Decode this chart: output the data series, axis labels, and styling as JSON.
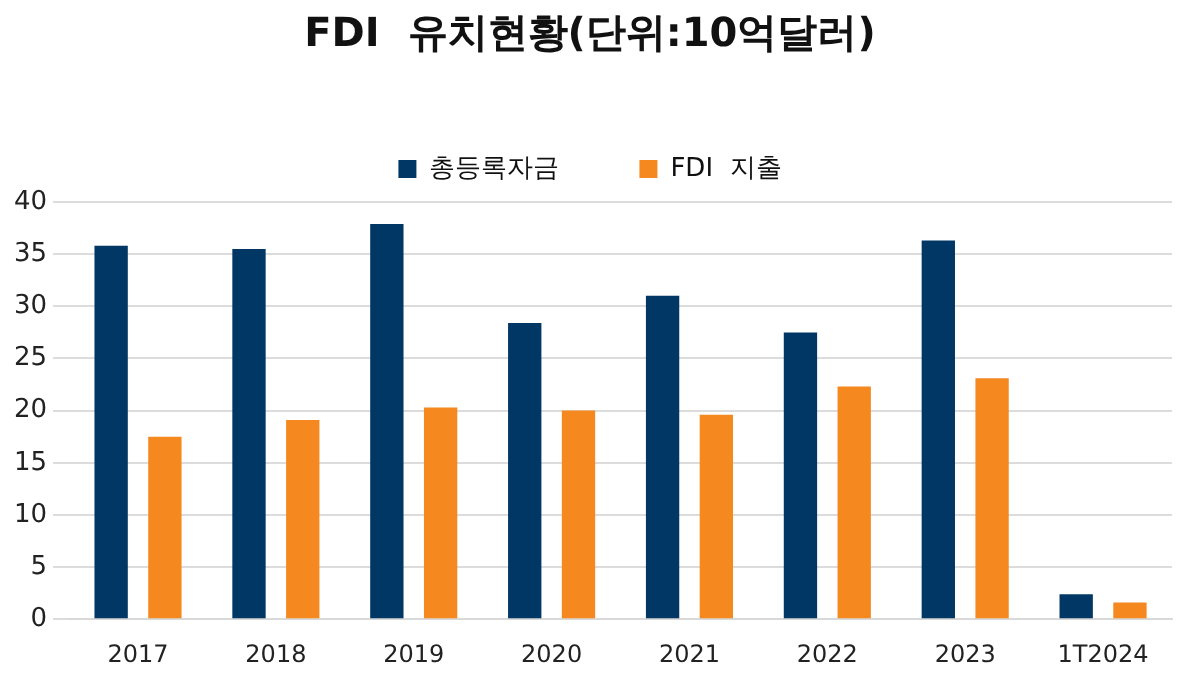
{
  "chart_data": {
    "type": "bar",
    "title": "FDI  유치현황(단위:10억달러)",
    "categories": [
      "2017",
      "2018",
      "2019",
      "2020",
      "2021",
      "2022",
      "2023",
      "1T2024"
    ],
    "series": [
      {
        "name": "총등록자금",
        "color": "#003764",
        "values": [
          35.8,
          35.5,
          37.9,
          28.4,
          31.0,
          27.5,
          36.3,
          2.4
        ]
      },
      {
        "name": "FDI  지출",
        "color": "#f5891f",
        "values": [
          17.5,
          19.1,
          20.3,
          20.0,
          19.6,
          22.3,
          23.1,
          1.6
        ]
      }
    ],
    "ylim": [
      0,
      40
    ],
    "yticks": [
      0,
      5,
      10,
      15,
      20,
      25,
      30,
      35,
      40
    ],
    "grid": "y",
    "legend": "top"
  }
}
